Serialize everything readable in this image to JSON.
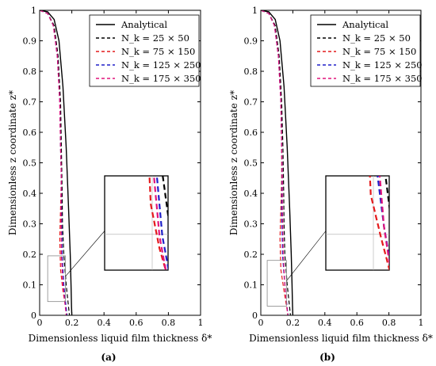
{
  "chart_data": [
    {
      "type": "line",
      "panel_caption": "(a)",
      "xlabel": "Dimensionless liquid film thickness δ*",
      "ylabel": "Dimensionless z coordinate z*",
      "xlim": [
        0,
        1
      ],
      "ylim": [
        0,
        1
      ],
      "xticks": [
        "0",
        "0.2",
        "0.4",
        "0.6",
        "0.8",
        "1"
      ],
      "yticks": [
        "0",
        "0.1",
        "0.2",
        "0.3",
        "0.4",
        "0.5",
        "0.6",
        "0.7",
        "0.8",
        "0.9",
        "1"
      ],
      "grid": false,
      "legend_position": "top-right",
      "inset": {
        "zoom_region_x": [
          0.05,
          0.16
        ],
        "zoom_region_y": [
          0.045,
          0.195
        ]
      },
      "series": [
        {
          "name": "Analytical",
          "color": "#000000",
          "dash": "solid",
          "x": [
            0.0,
            0.05,
            0.09,
            0.12,
            0.145,
            0.165,
            0.18,
            0.19,
            0.195,
            0.198,
            0.2
          ],
          "y": [
            1.0,
            0.995,
            0.97,
            0.9,
            0.75,
            0.55,
            0.35,
            0.2,
            0.1,
            0.03,
            0.0
          ]
        },
        {
          "name": "N_k = 25 × 50",
          "color": "#000000",
          "dash": "dashed",
          "x": [
            0.0,
            0.05,
            0.09,
            0.115,
            0.13,
            0.135,
            0.14,
            0.142,
            0.15,
            0.165,
            0.185
          ],
          "y": [
            1.0,
            0.99,
            0.95,
            0.85,
            0.7,
            0.55,
            0.4,
            0.3,
            0.2,
            0.1,
            0.0
          ]
        },
        {
          "name": "N_k = 75 × 150",
          "color": "#e41a1c",
          "dash": "dashed",
          "x": [
            0.0,
            0.05,
            0.085,
            0.11,
            0.125,
            0.13,
            0.135,
            0.13,
            0.125,
            0.13,
            0.145,
            0.17
          ],
          "y": [
            1.0,
            0.99,
            0.95,
            0.85,
            0.7,
            0.55,
            0.45,
            0.35,
            0.25,
            0.15,
            0.08,
            0.0
          ]
        },
        {
          "name": "N_k = 125 × 250",
          "color": "#1f1fc8",
          "dash": "dashed",
          "x": [
            0.0,
            0.05,
            0.085,
            0.11,
            0.125,
            0.13,
            0.135,
            0.135,
            0.14,
            0.15,
            0.17
          ],
          "y": [
            1.0,
            0.99,
            0.95,
            0.85,
            0.7,
            0.55,
            0.45,
            0.35,
            0.2,
            0.1,
            0.0
          ]
        },
        {
          "name": "N_k = 175 × 350",
          "color": "#e0147a",
          "dash": "dashed",
          "x": [
            0.0,
            0.05,
            0.085,
            0.11,
            0.125,
            0.13,
            0.135,
            0.133,
            0.135,
            0.145,
            0.165
          ],
          "y": [
            1.0,
            0.99,
            0.95,
            0.85,
            0.7,
            0.55,
            0.45,
            0.35,
            0.2,
            0.1,
            0.0
          ]
        }
      ]
    },
    {
      "type": "line",
      "panel_caption": "(b)",
      "xlabel": "Dimensionless liquid film thickness δ*",
      "ylabel": "Dimensionless z coordinate z*",
      "xlim": [
        0,
        1
      ],
      "ylim": [
        0,
        1
      ],
      "xticks": [
        "0",
        "0.2",
        "0.4",
        "0.6",
        "0.8",
        "1"
      ],
      "yticks": [
        "0",
        "0.1",
        "0.2",
        "0.3",
        "0.4",
        "0.5",
        "0.6",
        "0.7",
        "0.8",
        "0.9",
        "1"
      ],
      "grid": false,
      "legend_position": "top-right",
      "inset": {
        "zoom_region_x": [
          0.04,
          0.16
        ],
        "zoom_region_y": [
          0.03,
          0.18
        ]
      },
      "series": [
        {
          "name": "Analytical",
          "color": "#000000",
          "dash": "solid",
          "x": [
            0.0,
            0.05,
            0.09,
            0.12,
            0.145,
            0.165,
            0.18,
            0.19,
            0.195,
            0.198,
            0.2
          ],
          "y": [
            1.0,
            0.995,
            0.97,
            0.9,
            0.75,
            0.55,
            0.35,
            0.2,
            0.1,
            0.03,
            0.0
          ]
        },
        {
          "name": "N_k = 25 × 50",
          "color": "#000000",
          "dash": "dashed",
          "x": [
            0.0,
            0.05,
            0.09,
            0.115,
            0.13,
            0.138,
            0.143,
            0.145,
            0.15,
            0.165,
            0.185
          ],
          "y": [
            1.0,
            0.99,
            0.95,
            0.85,
            0.7,
            0.55,
            0.4,
            0.3,
            0.2,
            0.1,
            0.0
          ]
        },
        {
          "name": "N_k = 75 × 150",
          "color": "#e41a1c",
          "dash": "dashed",
          "x": [
            0.0,
            0.05,
            0.085,
            0.11,
            0.125,
            0.13,
            0.13,
            0.125,
            0.12,
            0.125,
            0.145,
            0.17
          ],
          "y": [
            1.0,
            0.99,
            0.95,
            0.85,
            0.7,
            0.55,
            0.45,
            0.35,
            0.25,
            0.15,
            0.08,
            0.0
          ]
        },
        {
          "name": "N_k = 125 × 250",
          "color": "#1f1fc8",
          "dash": "dashed",
          "x": [
            0.0,
            0.05,
            0.085,
            0.11,
            0.125,
            0.13,
            0.133,
            0.13,
            0.135,
            0.15,
            0.17
          ],
          "y": [
            1.0,
            0.99,
            0.95,
            0.85,
            0.7,
            0.55,
            0.45,
            0.35,
            0.2,
            0.1,
            0.0
          ]
        },
        {
          "name": "N_k = 175 × 350",
          "color": "#e0147a",
          "dash": "dashed",
          "x": [
            0.0,
            0.05,
            0.085,
            0.11,
            0.125,
            0.13,
            0.135,
            0.135,
            0.14,
            0.15,
            0.168
          ],
          "y": [
            1.0,
            0.99,
            0.95,
            0.85,
            0.7,
            0.55,
            0.45,
            0.35,
            0.2,
            0.1,
            0.0
          ]
        }
      ]
    }
  ]
}
